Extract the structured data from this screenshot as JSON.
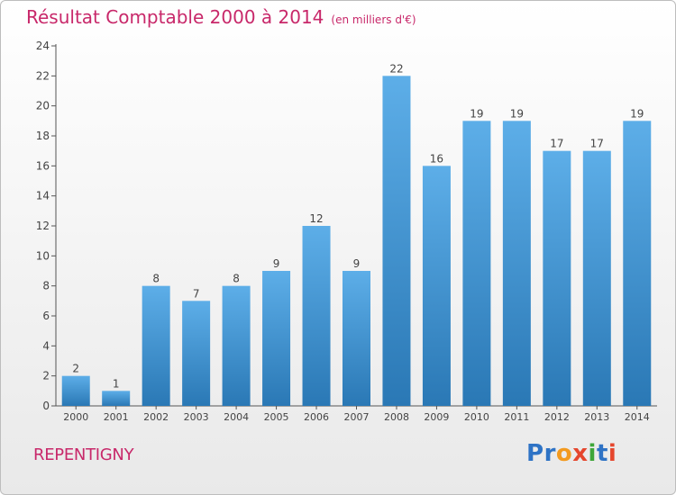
{
  "chart_data": {
    "type": "bar",
    "title": "Résultat Comptable 2000 à 2014",
    "subtitle": "(en milliers d'€)",
    "categories": [
      "2000",
      "2001",
      "2002",
      "2003",
      "2004",
      "2005",
      "2006",
      "2007",
      "2008",
      "2009",
      "2010",
      "2011",
      "2012",
      "2013",
      "2014"
    ],
    "values": [
      2,
      1,
      8,
      7,
      8,
      9,
      12,
      9,
      22,
      16,
      19,
      19,
      17,
      17,
      19
    ],
    "ylim": [
      0,
      24
    ],
    "yticks": [
      0,
      2,
      4,
      6,
      8,
      10,
      12,
      14,
      16,
      18,
      20,
      22,
      24
    ],
    "xlabel": "",
    "ylabel": "",
    "grid": false,
    "colors": {
      "bar_top": "#5daee8",
      "bar_bottom": "#2a78b5",
      "axis": "#555555",
      "label": "#444444"
    }
  },
  "footer": {
    "commune": "REPENTIGNY",
    "logo": {
      "name": "Proxiti-logo",
      "alt": "Proxiti"
    }
  }
}
